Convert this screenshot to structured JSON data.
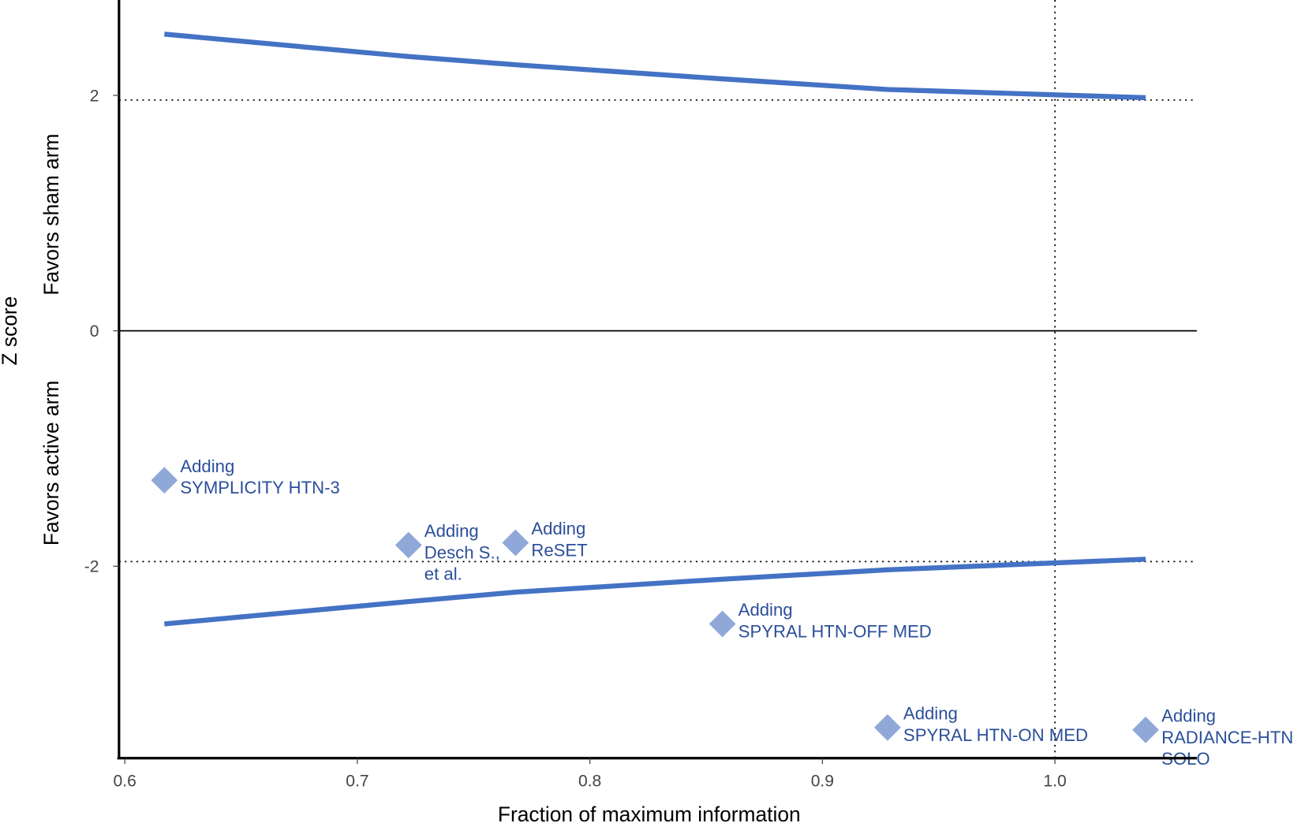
{
  "chart_data": {
    "type": "line",
    "title": "",
    "xlabel": "Fraction of maximum information",
    "ylabel": "Z score",
    "ylabel_upper": "Favors sham arm",
    "ylabel_lower": "Favors active arm",
    "xlim": [
      0.5975,
      1.061
    ],
    "ylim": [
      -3.63,
      2.81
    ],
    "xticks": [
      "0.6",
      "0.7",
      "0.8",
      "0.9",
      "1.0"
    ],
    "yticks": [
      "2",
      "0",
      "-2"
    ],
    "grid": false,
    "reference_lines": {
      "horizontal": [
        1.96,
        -1.96
      ],
      "vertical": [
        1.0
      ],
      "zero_line": 0
    },
    "colors": {
      "boundary": "#4472c4",
      "points": "#8fa8d8",
      "labels": "#2b4f9a"
    },
    "series": [
      {
        "kind": "upper-boundary",
        "x": [
          0.617,
          0.722,
          0.768,
          0.857,
          0.928,
          1.039
        ],
        "y": [
          2.52,
          2.33,
          2.26,
          2.14,
          2.05,
          1.98
        ]
      },
      {
        "kind": "lower-boundary",
        "x": [
          0.617,
          0.722,
          0.768,
          0.857,
          0.928,
          1.039
        ],
        "y": [
          -2.49,
          -2.3,
          -2.22,
          -2.11,
          -2.03,
          -1.94
        ]
      }
    ],
    "points": [
      {
        "x": 0.617,
        "y": -1.27,
        "label": [
          "Adding",
          "SYMPLICITY HTN-3"
        ]
      },
      {
        "x": 0.722,
        "y": -1.82,
        "label": [
          "Adding",
          "Desch S.,",
          "et al."
        ]
      },
      {
        "x": 0.768,
        "y": -1.8,
        "label": [
          "Adding",
          "ReSET"
        ]
      },
      {
        "x": 0.857,
        "y": -2.49,
        "label": [
          "Adding",
          "SPYRAL HTN-OFF MED"
        ]
      },
      {
        "x": 0.928,
        "y": -3.37,
        "label": [
          "Adding",
          "SPYRAL HTN-ON MED"
        ]
      },
      {
        "x": 1.039,
        "y": -3.39,
        "label": [
          "Adding",
          "RADIANCE-HTN",
          "SOLO"
        ]
      }
    ]
  }
}
